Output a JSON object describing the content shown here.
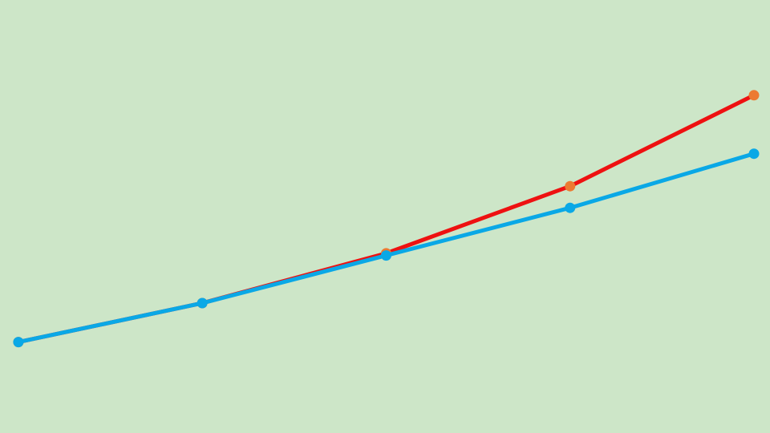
{
  "chart_data": {
    "type": "line",
    "title": "",
    "xlabel": "",
    "ylabel": "",
    "grid": false,
    "legend": "none",
    "background_color": "#cde6c8",
    "x": [
      1,
      2,
      3,
      4,
      5
    ],
    "xlim": [
      0.9,
      5.0
    ],
    "ylim": [
      0,
      100
    ],
    "series": [
      {
        "values": [
          21,
          30,
          41.5,
          57,
          78
        ],
        "line_color": "#ee1111",
        "marker_color": "#ec7a32"
      },
      {
        "values": [
          21,
          30,
          41,
          52,
          64.5
        ],
        "line_color": "#0aa8e6",
        "marker_color": "#0aa8e6"
      }
    ]
  }
}
